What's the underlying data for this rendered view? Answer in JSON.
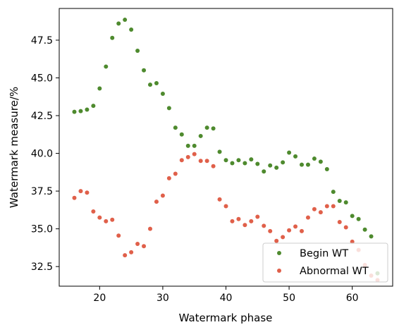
{
  "chart_data": {
    "type": "scatter",
    "title": "",
    "xlabel": "Watermark phase",
    "ylabel": "Watermark measure/%",
    "xlim": [
      13.6,
      66.4
    ],
    "ylim": [
      31.2,
      49.6
    ],
    "xticks": [
      20,
      30,
      40,
      50,
      60
    ],
    "yticks": [
      32.5,
      35.0,
      37.5,
      40.0,
      42.5,
      45.0,
      47.5
    ],
    "xtick_labels": [
      "20",
      "30",
      "40",
      "50",
      "60"
    ],
    "ytick_labels": [
      "32.5",
      "35.0",
      "37.5",
      "40.0",
      "42.5",
      "45.0",
      "47.5"
    ],
    "grid": false,
    "legend_position": "lower-right",
    "series": [
      {
        "name": "Begin WT",
        "color": "#4e8a2e",
        "x": [
          16,
          17,
          18,
          19,
          20,
          21,
          22,
          23,
          24,
          25,
          26,
          27,
          28,
          29,
          30,
          31,
          32,
          33,
          34,
          35,
          36,
          37,
          38,
          39,
          40,
          41,
          42,
          43,
          44,
          45,
          46,
          47,
          48,
          49,
          50,
          51,
          52,
          53,
          54,
          55,
          56,
          57,
          58,
          59,
          60,
          61,
          62,
          63,
          64
        ],
        "y": [
          42.75,
          42.8,
          42.9,
          43.15,
          44.3,
          45.75,
          47.65,
          48.6,
          48.85,
          48.2,
          46.8,
          45.5,
          44.55,
          44.65,
          43.95,
          43.0,
          41.7,
          41.25,
          40.5,
          40.5,
          41.15,
          41.7,
          41.65,
          40.1,
          39.55,
          39.35,
          39.55,
          39.35,
          39.6,
          39.3,
          38.8,
          39.2,
          39.05,
          39.4,
          40.05,
          39.8,
          39.25,
          39.25,
          39.65,
          39.45,
          38.95,
          37.45,
          36.85,
          36.75,
          35.85,
          35.65,
          34.95,
          34.5,
          32.05
        ]
      },
      {
        "name": "Abnormal WT",
        "color": "#e0604a",
        "x": [
          16,
          17,
          18,
          19,
          20,
          21,
          22,
          23,
          24,
          25,
          26,
          27,
          28,
          29,
          30,
          31,
          32,
          33,
          34,
          35,
          36,
          37,
          38,
          39,
          40,
          41,
          42,
          43,
          44,
          45,
          46,
          47,
          48,
          49,
          50,
          51,
          52,
          53,
          54,
          55,
          56,
          57,
          58,
          59,
          60,
          61,
          62,
          63,
          64
        ],
        "y": [
          37.05,
          37.5,
          37.4,
          36.15,
          35.75,
          35.5,
          35.6,
          34.55,
          33.25,
          33.45,
          34.0,
          33.85,
          35.0,
          36.8,
          37.2,
          38.35,
          38.65,
          39.55,
          39.75,
          39.95,
          39.5,
          39.5,
          39.15,
          36.95,
          36.5,
          35.5,
          35.65,
          35.25,
          35.5,
          35.8,
          35.2,
          34.85,
          34.2,
          34.45,
          34.9,
          35.15,
          34.85,
          35.75,
          36.3,
          36.1,
          36.5,
          36.5,
          35.45,
          35.1,
          34.15,
          33.6,
          32.6,
          31.9,
          31.6
        ]
      }
    ]
  }
}
